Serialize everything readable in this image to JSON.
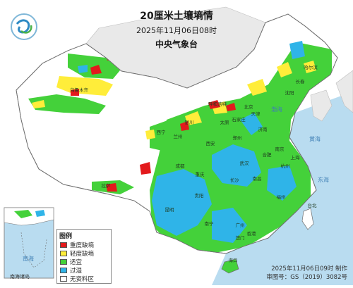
{
  "header": {
    "title": "20厘米土壤墒情",
    "datetime": "2025年11月06日08时",
    "agency": "中央气象台"
  },
  "legend": {
    "title": "图例",
    "items": [
      {
        "label": "重度缺墒",
        "color": "#e31a1c"
      },
      {
        "label": "轻度缺墒",
        "color": "#ffed3a"
      },
      {
        "label": "适宜",
        "color": "#44d13a"
      },
      {
        "label": "过湿",
        "color": "#2fb4e8"
      },
      {
        "label": "无资料区",
        "color": "#ffffff"
      }
    ]
  },
  "footer": {
    "made_time": "2025年11月06日09时 制作",
    "map_review": "审图号：GS（2019）3082号"
  },
  "inset": {
    "caption": "南海诸岛"
  },
  "colors": {
    "sea": "#b9dcf0",
    "land_no_data": "#ffffff",
    "border": "#7a7a7a"
  },
  "map_labels": {
    "provinces": [
      "哈尔滨",
      "长春",
      "沈阳",
      "北京",
      "天津",
      "石家庄",
      "太原",
      "呼和浩特",
      "济南",
      "郑州",
      "西安",
      "银川",
      "兰州",
      "西宁",
      "乌鲁木齐",
      "拉萨",
      "成都",
      "重庆",
      "武汉",
      "合肥",
      "南京",
      "上海",
      "杭州",
      "长沙",
      "南昌",
      "福州",
      "贵阳",
      "昆明",
      "南宁",
      "广州",
      "香港",
      "澳门",
      "台北",
      "海口"
    ],
    "seas": [
      "黄海",
      "东海",
      "渤海",
      "南海"
    ]
  }
}
